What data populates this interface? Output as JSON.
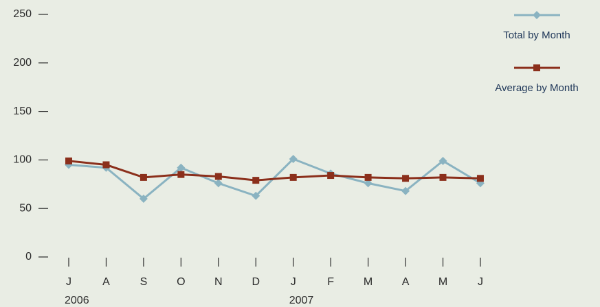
{
  "chart_data": {
    "type": "line",
    "categories": [
      "J",
      "A",
      "S",
      "O",
      "N",
      "D",
      "J",
      "F",
      "M",
      "A",
      "M",
      "J"
    ],
    "year_labels": [
      "2006",
      null,
      null,
      null,
      null,
      null,
      "2007",
      null,
      null,
      null,
      null,
      null
    ],
    "series": [
      {
        "name": "Total by Month",
        "color": "#8ab3c1",
        "marker": "diamond",
        "values": [
          95,
          92,
          60,
          92,
          76,
          63,
          101,
          86,
          76,
          68,
          99,
          76
        ]
      },
      {
        "name": "Average by Month",
        "color": "#8b2f1b",
        "marker": "square",
        "values": [
          99,
          95,
          82,
          85,
          83,
          79,
          82,
          84,
          82,
          81,
          82,
          81
        ]
      }
    ],
    "ylim": [
      0,
      250
    ],
    "yticks": [
      0,
      50,
      100,
      150,
      200,
      250
    ],
    "legend": "top-right"
  }
}
